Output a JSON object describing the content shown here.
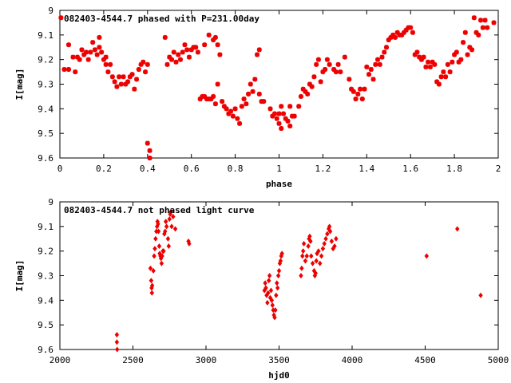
{
  "chart_data": [
    {
      "type": "scatter",
      "title": "082403-4544.7 phased with P=231.00day",
      "xlabel": "phase",
      "ylabel": "I[mag]",
      "xlim": [
        0,
        2
      ],
      "ylim": [
        9.6,
        9
      ],
      "y_inverted": true,
      "xticks": [
        "0",
        "0.2",
        "0.4",
        "0.6",
        "0.8",
        "1",
        "1.2",
        "1.4",
        "1.6",
        "1.8",
        "2"
      ],
      "yticks": [
        "9",
        "9.1",
        "9.2",
        "9.3",
        "9.4",
        "9.5",
        "9.6"
      ],
      "marker": "plus",
      "color": "#ee0000",
      "points": [
        [
          0.005,
          9.03
        ],
        [
          0.02,
          9.24
        ],
        [
          0.04,
          9.24
        ],
        [
          0.04,
          9.14
        ],
        [
          0.06,
          9.19
        ],
        [
          0.07,
          9.25
        ],
        [
          0.08,
          9.19
        ],
        [
          0.09,
          9.2
        ],
        [
          0.1,
          9.16
        ],
        [
          0.11,
          9.18
        ],
        [
          0.12,
          9.17
        ],
        [
          0.13,
          9.2
        ],
        [
          0.14,
          9.17
        ],
        [
          0.15,
          9.13
        ],
        [
          0.16,
          9.16
        ],
        [
          0.17,
          9.18
        ],
        [
          0.18,
          9.15
        ],
        [
          0.18,
          9.11
        ],
        [
          0.19,
          9.17
        ],
        [
          0.2,
          9.2
        ],
        [
          0.21,
          9.19
        ],
        [
          0.21,
          9.22
        ],
        [
          0.22,
          9.25
        ],
        [
          0.23,
          9.22
        ],
        [
          0.24,
          9.27
        ],
        [
          0.25,
          9.29
        ],
        [
          0.26,
          9.31
        ],
        [
          0.27,
          9.27
        ],
        [
          0.28,
          9.3
        ],
        [
          0.29,
          9.27
        ],
        [
          0.3,
          9.3
        ],
        [
          0.31,
          9.29
        ],
        [
          0.32,
          9.27
        ],
        [
          0.33,
          9.26
        ],
        [
          0.34,
          9.32
        ],
        [
          0.35,
          9.28
        ],
        [
          0.36,
          9.24
        ],
        [
          0.37,
          9.22
        ],
        [
          0.38,
          9.21
        ],
        [
          0.39,
          9.25
        ],
        [
          0.4,
          9.22
        ],
        [
          0.4,
          9.54
        ],
        [
          0.41,
          9.57
        ],
        [
          0.41,
          9.6
        ],
        [
          0.48,
          9.11
        ],
        [
          0.49,
          9.22
        ],
        [
          0.5,
          9.19
        ],
        [
          0.51,
          9.2
        ],
        [
          0.52,
          9.17
        ],
        [
          0.53,
          9.21
        ],
        [
          0.54,
          9.18
        ],
        [
          0.55,
          9.2
        ],
        [
          0.56,
          9.17
        ],
        [
          0.57,
          9.14
        ],
        [
          0.58,
          9.16
        ],
        [
          0.59,
          9.19
        ],
        [
          0.6,
          9.16
        ],
        [
          0.61,
          9.15
        ],
        [
          0.62,
          9.15
        ],
        [
          0.63,
          9.17
        ],
        [
          0.64,
          9.36
        ],
        [
          0.65,
          9.35
        ],
        [
          0.66,
          9.35
        ],
        [
          0.67,
          9.36
        ],
        [
          0.68,
          9.36
        ],
        [
          0.69,
          9.36
        ],
        [
          0.7,
          9.35
        ],
        [
          0.66,
          9.14
        ],
        [
          0.68,
          9.1
        ],
        [
          0.7,
          9.12
        ],
        [
          0.71,
          9.11
        ],
        [
          0.72,
          9.14
        ],
        [
          0.73,
          9.18
        ],
        [
          0.71,
          9.38
        ],
        [
          0.72,
          9.3
        ],
        [
          0.74,
          9.37
        ],
        [
          0.75,
          9.39
        ],
        [
          0.76,
          9.4
        ],
        [
          0.77,
          9.42
        ],
        [
          0.78,
          9.41
        ],
        [
          0.79,
          9.43
        ],
        [
          0.8,
          9.4
        ],
        [
          0.81,
          9.44
        ],
        [
          0.82,
          9.46
        ],
        [
          0.83,
          9.39
        ],
        [
          0.84,
          9.36
        ],
        [
          0.85,
          9.38
        ],
        [
          0.86,
          9.34
        ],
        [
          0.87,
          9.3
        ],
        [
          0.88,
          9.33
        ],
        [
          0.89,
          9.28
        ],
        [
          0.9,
          9.18
        ],
        [
          0.91,
          9.16
        ],
        [
          0.91,
          9.34
        ],
        [
          0.92,
          9.37
        ],
        [
          0.93,
          9.37
        ],
        [
          0.96,
          9.4
        ],
        [
          0.97,
          9.43
        ],
        [
          0.98,
          9.42
        ],
        [
          0.99,
          9.44
        ],
        [
          1.0,
          9.42
        ],
        [
          1.01,
          9.39
        ],
        [
          1.02,
          9.42
        ],
        [
          1.03,
          9.44
        ],
        [
          1.04,
          9.45
        ],
        [
          1.05,
          9.47
        ],
        [
          1.06,
          9.43
        ],
        [
          1.07,
          9.43
        ],
        [
          1.0,
          9.46
        ],
        [
          1.01,
          9.48
        ],
        [
          1.05,
          9.39
        ],
        [
          1.09,
          9.39
        ],
        [
          1.1,
          9.35
        ],
        [
          1.11,
          9.32
        ],
        [
          1.12,
          9.33
        ],
        [
          1.13,
          9.34
        ],
        [
          1.14,
          9.3
        ],
        [
          1.15,
          9.31
        ],
        [
          1.16,
          9.27
        ],
        [
          1.17,
          9.22
        ],
        [
          1.18,
          9.2
        ],
        [
          1.19,
          9.29
        ],
        [
          1.2,
          9.25
        ],
        [
          1.21,
          9.24
        ],
        [
          1.22,
          9.2
        ],
        [
          1.23,
          9.22
        ],
        [
          1.25,
          9.24
        ],
        [
          1.26,
          9.25
        ],
        [
          1.27,
          9.22
        ],
        [
          1.28,
          9.25
        ],
        [
          1.3,
          9.19
        ],
        [
          1.32,
          9.28
        ],
        [
          1.33,
          9.32
        ],
        [
          1.34,
          9.33
        ],
        [
          1.35,
          9.36
        ],
        [
          1.36,
          9.34
        ],
        [
          1.37,
          9.32
        ],
        [
          1.38,
          9.36
        ],
        [
          1.39,
          9.32
        ],
        [
          1.4,
          9.23
        ],
        [
          1.41,
          9.26
        ],
        [
          1.42,
          9.24
        ],
        [
          1.43,
          9.28
        ],
        [
          1.44,
          9.22
        ],
        [
          1.45,
          9.2
        ],
        [
          1.46,
          9.22
        ],
        [
          1.47,
          9.19
        ],
        [
          1.48,
          9.17
        ],
        [
          1.49,
          9.15
        ],
        [
          1.5,
          9.12
        ],
        [
          1.51,
          9.11
        ],
        [
          1.52,
          9.1
        ],
        [
          1.53,
          9.11
        ],
        [
          1.54,
          9.09
        ],
        [
          1.55,
          9.1
        ],
        [
          1.56,
          9.1
        ],
        [
          1.57,
          9.09
        ],
        [
          1.58,
          9.08
        ],
        [
          1.59,
          9.07
        ],
        [
          1.6,
          9.07
        ],
        [
          1.61,
          9.09
        ],
        [
          1.62,
          9.18
        ],
        [
          1.63,
          9.17
        ],
        [
          1.64,
          9.19
        ],
        [
          1.65,
          9.2
        ],
        [
          1.66,
          9.19
        ],
        [
          1.67,
          9.23
        ],
        [
          1.68,
          9.21
        ],
        [
          1.69,
          9.23
        ],
        [
          1.7,
          9.21
        ],
        [
          1.71,
          9.22
        ],
        [
          1.72,
          9.29
        ],
        [
          1.73,
          9.3
        ],
        [
          1.74,
          9.27
        ],
        [
          1.75,
          9.25
        ],
        [
          1.76,
          9.27
        ],
        [
          1.77,
          9.22
        ],
        [
          1.78,
          9.25
        ],
        [
          1.79,
          9.21
        ],
        [
          1.8,
          9.18
        ],
        [
          1.81,
          9.17
        ],
        [
          1.82,
          9.21
        ],
        [
          1.83,
          9.2
        ],
        [
          1.84,
          9.13
        ],
        [
          1.85,
          9.09
        ],
        [
          1.86,
          9.18
        ],
        [
          1.87,
          9.15
        ],
        [
          1.88,
          9.16
        ],
        [
          1.89,
          9.03
        ],
        [
          1.9,
          9.09
        ],
        [
          1.91,
          9.1
        ],
        [
          1.92,
          9.04
        ],
        [
          1.93,
          9.07
        ],
        [
          1.94,
          9.04
        ],
        [
          1.95,
          9.07
        ],
        [
          1.98,
          9.05
        ]
      ]
    },
    {
      "type": "scatter",
      "title": "082403-4544.7 not phased light curve",
      "xlabel": "hjd0",
      "ylabel": "I[mag]",
      "xlim": [
        2000,
        5000
      ],
      "ylim": [
        9.6,
        9
      ],
      "y_inverted": true,
      "xticks": [
        "2000",
        "2500",
        "3000",
        "3500",
        "4000",
        "4500",
        "5000"
      ],
      "yticks": [
        "9",
        "9.1",
        "9.2",
        "9.3",
        "9.4",
        "9.5",
        "9.6"
      ],
      "marker": "diamond",
      "color": "#ee0000",
      "points": [
        [
          2390,
          9.54
        ],
        [
          2390,
          9.57
        ],
        [
          2392,
          9.6
        ],
        [
          2620,
          9.27
        ],
        [
          2625,
          9.32
        ],
        [
          2628,
          9.35
        ],
        [
          2630,
          9.37
        ],
        [
          2632,
          9.34
        ],
        [
          2640,
          9.28
        ],
        [
          2645,
          9.22
        ],
        [
          2650,
          9.19
        ],
        [
          2655,
          9.15
        ],
        [
          2660,
          9.12
        ],
        [
          2665,
          9.1
        ],
        [
          2668,
          9.08
        ],
        [
          2672,
          9.09
        ],
        [
          2675,
          9.12
        ],
        [
          2680,
          9.18
        ],
        [
          2683,
          9.21
        ],
        [
          2688,
          9.22
        ],
        [
          2692,
          9.23
        ],
        [
          2696,
          9.25
        ],
        [
          2700,
          9.22
        ],
        [
          2705,
          9.2
        ],
        [
          2710,
          9.2
        ],
        [
          2715,
          9.13
        ],
        [
          2720,
          9.12
        ],
        [
          2725,
          9.08
        ],
        [
          2730,
          9.1
        ],
        [
          2740,
          9.15
        ],
        [
          2745,
          9.18
        ],
        [
          2750,
          9.07
        ],
        [
          2755,
          9.05
        ],
        [
          2760,
          9.04
        ],
        [
          2765,
          9.1
        ],
        [
          2775,
          9.06
        ],
        [
          2790,
          9.11
        ],
        [
          2880,
          9.16
        ],
        [
          2885,
          9.17
        ],
        [
          3400,
          9.36
        ],
        [
          3405,
          9.33
        ],
        [
          3410,
          9.35
        ],
        [
          3415,
          9.38
        ],
        [
          3420,
          9.41
        ],
        [
          3425,
          9.37
        ],
        [
          3430,
          9.32
        ],
        [
          3435,
          9.3
        ],
        [
          3440,
          9.39
        ],
        [
          3445,
          9.36
        ],
        [
          3450,
          9.4
        ],
        [
          3455,
          9.42
        ],
        [
          3460,
          9.44
        ],
        [
          3465,
          9.46
        ],
        [
          3470,
          9.47
        ],
        [
          3475,
          9.44
        ],
        [
          3480,
          9.38
        ],
        [
          3485,
          9.33
        ],
        [
          3490,
          9.35
        ],
        [
          3495,
          9.3
        ],
        [
          3500,
          9.28
        ],
        [
          3505,
          9.25
        ],
        [
          3510,
          9.24
        ],
        [
          3515,
          9.22
        ],
        [
          3520,
          9.21
        ],
        [
          3650,
          9.3
        ],
        [
          3655,
          9.27
        ],
        [
          3660,
          9.22
        ],
        [
          3665,
          9.2
        ],
        [
          3670,
          9.17
        ],
        [
          3680,
          9.24
        ],
        [
          3690,
          9.22
        ],
        [
          3700,
          9.18
        ],
        [
          3705,
          9.15
        ],
        [
          3710,
          9.14
        ],
        [
          3715,
          9.16
        ],
        [
          3720,
          9.22
        ],
        [
          3730,
          9.25
        ],
        [
          3740,
          9.28
        ],
        [
          3745,
          9.3
        ],
        [
          3750,
          9.29
        ],
        [
          3755,
          9.24
        ],
        [
          3760,
          9.21
        ],
        [
          3770,
          9.2
        ],
        [
          3780,
          9.25
        ],
        [
          3790,
          9.22
        ],
        [
          3800,
          9.19
        ],
        [
          3810,
          9.17
        ],
        [
          3820,
          9.15
        ],
        [
          3830,
          9.13
        ],
        [
          3840,
          9.11
        ],
        [
          3845,
          9.1
        ],
        [
          3850,
          9.12
        ],
        [
          3860,
          9.16
        ],
        [
          3870,
          9.19
        ],
        [
          3880,
          9.18
        ],
        [
          3890,
          9.15
        ],
        [
          4510,
          9.22
        ],
        [
          4720,
          9.11
        ],
        [
          4880,
          9.38
        ]
      ]
    }
  ]
}
